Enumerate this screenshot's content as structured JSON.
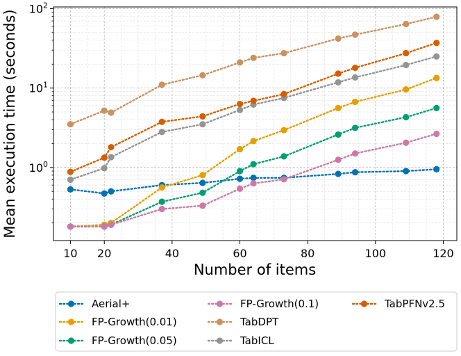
{
  "chart_data": {
    "type": "line",
    "title": "",
    "xlabel": "Number of items",
    "ylabel": "Mean execution time (seconds)",
    "xlim": [
      5,
      124
    ],
    "ylim": [
      0.12,
      105
    ],
    "yscale": "log",
    "grid": true,
    "legend_position": "bottom",
    "x_ticks": [
      10,
      20,
      40,
      60,
      80,
      100,
      120
    ],
    "x_tick_labels": [
      "10",
      "20",
      "40",
      "60",
      "80",
      "100",
      "120"
    ],
    "y_ticks": [
      1,
      10,
      100
    ],
    "y_tick_labels": [
      {
        "base": "10",
        "exp": "0"
      },
      {
        "base": "10",
        "exp": "1"
      },
      {
        "base": "10",
        "exp": "2"
      }
    ],
    "x": [
      10,
      20,
      22,
      37,
      49,
      60,
      64,
      73,
      89,
      94,
      109,
      118
    ],
    "series": [
      {
        "name": "Aerial+",
        "color": "#0072b2",
        "values": [
          0.53,
          0.47,
          0.5,
          0.6,
          0.64,
          0.72,
          0.74,
          0.74,
          0.83,
          0.87,
          0.9,
          0.95
        ]
      },
      {
        "name": "FP-Growth(0.01)",
        "color": "#e69f00",
        "values": [
          0.18,
          0.19,
          0.2,
          0.56,
          0.8,
          1.7,
          2.15,
          2.95,
          5.6,
          6.7,
          9.6,
          13.4
        ]
      },
      {
        "name": "FP-Growth(0.05)",
        "color": "#009e73",
        "values": [
          0.18,
          0.18,
          0.19,
          0.37,
          0.48,
          0.9,
          1.1,
          1.38,
          2.6,
          3.15,
          4.3,
          5.6
        ]
      },
      {
        "name": "FP-Growth(0.1)",
        "color": "#cc79a7",
        "values": [
          0.18,
          0.18,
          0.19,
          0.3,
          0.33,
          0.54,
          0.63,
          0.71,
          1.25,
          1.5,
          2.05,
          2.65
        ]
      },
      {
        "name": "TabDPT",
        "color": "#ca9161",
        "values": [
          3.5,
          5.2,
          4.9,
          11,
          14.5,
          21,
          24,
          27.5,
          42,
          47,
          64,
          79
        ]
      },
      {
        "name": "TabICL",
        "color": "#949494",
        "values": [
          0.7,
          0.98,
          1.35,
          2.8,
          3.5,
          5.3,
          6.2,
          7.5,
          11.8,
          13.6,
          19.5,
          25
        ]
      },
      {
        "name": "TabPFNv2.5",
        "color": "#d55e00",
        "values": [
          0.88,
          1.33,
          1.8,
          3.75,
          4.4,
          6.3,
          6.9,
          8.4,
          15.2,
          18,
          27.5,
          37
        ]
      }
    ]
  }
}
